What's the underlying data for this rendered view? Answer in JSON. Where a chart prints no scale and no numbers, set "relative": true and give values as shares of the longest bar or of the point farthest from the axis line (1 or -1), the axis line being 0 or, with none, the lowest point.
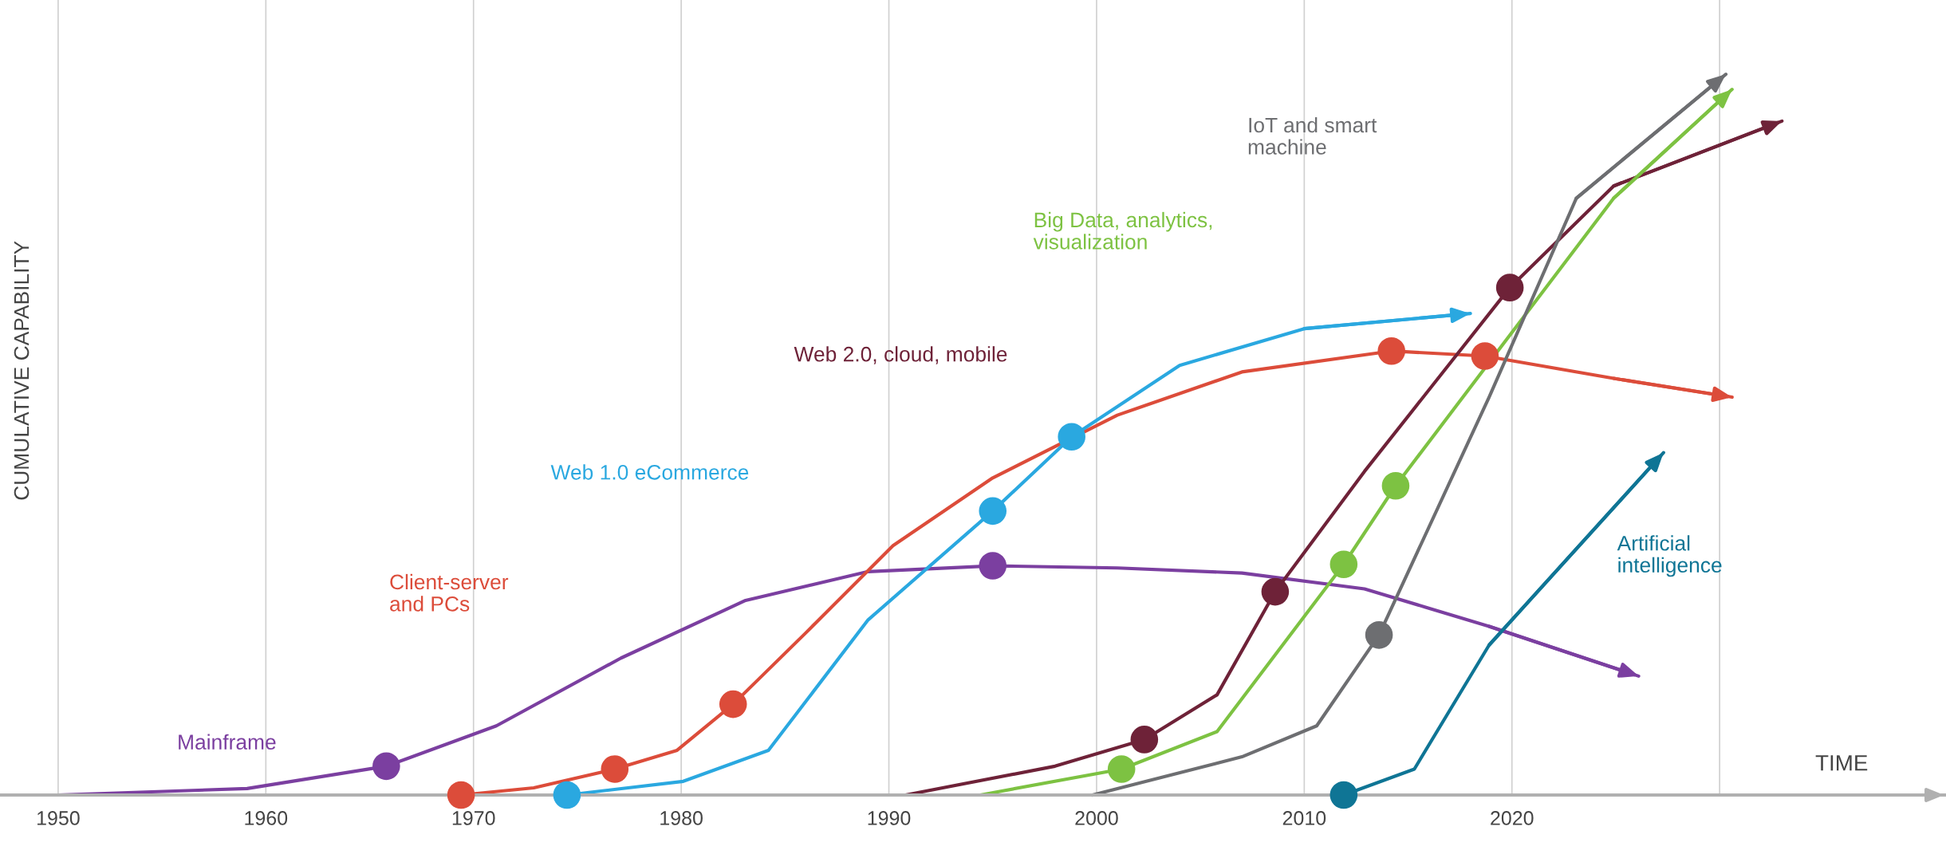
{
  "chart_data": {
    "type": "line",
    "relative": true,
    "xlabel": "TIME",
    "ylabel": "CUMULATIVE CAPABILITY",
    "xlim": [
      1947.2,
      2040.9
    ],
    "xticks": [
      1950,
      1960,
      1970,
      1980,
      1990,
      2000,
      2010,
      2020,
      {
        "value": 2030,
        "label": null
      }
    ],
    "grid": "x",
    "tick_labels": "x",
    "marker": "none",
    "line_style": "solid",
    "series": [
      {
        "name": "Mainframe",
        "color": "#7b3fa0",
        "x": [
          1950,
          1959.1,
          1965.8,
          1971.1,
          1977.1,
          1983.1,
          1989,
          1995,
          2001,
          2007,
          2012.9,
          2018.9,
          2026.1
        ],
        "values": [
          0,
          0.009,
          0.04,
          0.096,
          0.19,
          0.27,
          0.31,
          0.318,
          0.315,
          0.308,
          0.286,
          0.234,
          0.165
        ]
      },
      {
        "name": "Client-server\nand PCs",
        "color": "#dc4c3a",
        "x": [
          1969.4,
          1972.9,
          1976.8,
          1979.8,
          1982.5,
          1986,
          1990.2,
          1995,
          2001,
          2007,
          2014.2,
          2018.7,
          2024.9,
          2030.6
        ],
        "values": [
          0,
          0.01,
          0.036,
          0.062,
          0.126,
          0.225,
          0.346,
          0.44,
          0.527,
          0.587,
          0.616,
          0.609,
          0.578,
          0.552
        ]
      },
      {
        "name": "Web 1.0 eCommerce",
        "color": "#2aa8e0",
        "x": [
          1974.5,
          1980.1,
          1984.2,
          1989,
          1995,
          1998.8,
          2004,
          2010,
          2018
        ],
        "values": [
          0,
          0.019,
          0.062,
          0.243,
          0.394,
          0.497,
          0.596,
          0.647,
          0.668
        ]
      },
      {
        "name": "Web 2.0, cloud, mobile",
        "color": "#6e2238",
        "x": [
          1990.8,
          1998,
          2002.3,
          2005.8,
          2008.6,
          2012.9,
          2019.9,
          2024.9,
          2033
        ],
        "values": [
          0,
          0.04,
          0.077,
          0.139,
          0.282,
          0.449,
          0.704,
          0.845,
          0.935
        ]
      },
      {
        "name": "Big Data, analytics,\nvisualization",
        "color": "#7dc242",
        "x": [
          1994.4,
          2001.2,
          2005.8,
          2011.9,
          2014.4,
          2024.9,
          2030.6
        ],
        "values": [
          0,
          0.036,
          0.088,
          0.32,
          0.429,
          0.828,
          0.979
        ]
      },
      {
        "name": "IoT and smart\nmachine",
        "color": "#6d6e71",
        "x": [
          1999.8,
          2007,
          2010.6,
          2013.6,
          2018.9,
          2023.1,
          2030.3
        ],
        "values": [
          0,
          0.053,
          0.096,
          0.222,
          0.552,
          0.828,
          1
        ]
      },
      {
        "name": "Artificial\nintelligence",
        "color": "#0f7595",
        "x": [
          2011.9,
          2015.3,
          2018.9,
          2027.3
        ],
        "values": [
          0,
          0.036,
          0.208,
          0.475
        ]
      },
      {
        "type": "scatter",
        "marker": "circle",
        "color": "#7b3fa0",
        "x": [
          1965.8,
          1995
        ],
        "values": [
          0.04,
          0.318
        ]
      },
      {
        "type": "scatter",
        "marker": "circle",
        "color": "#dc4c3a",
        "x": [
          1969.4,
          1976.8,
          1982.5,
          2014.2,
          2018.7
        ],
        "values": [
          0,
          0.036,
          0.126,
          0.616,
          0.609
        ]
      },
      {
        "type": "scatter",
        "marker": "circle",
        "color": "#2aa8e0",
        "x": [
          1974.5,
          1995,
          1998.8
        ],
        "values": [
          0,
          0.394,
          0.497
        ]
      },
      {
        "type": "scatter",
        "marker": "circle",
        "color": "#6e2238",
        "x": [
          2002.3,
          2008.6,
          2019.9
        ],
        "values": [
          0.077,
          0.282,
          0.704
        ]
      },
      {
        "type": "scatter",
        "marker": "circle",
        "color": "#7dc242",
        "x": [
          2001.2,
          2011.9,
          2014.4
        ],
        "values": [
          0.036,
          0.32,
          0.429
        ]
      },
      {
        "type": "scatter",
        "marker": "circle",
        "color": "#6d6e71",
        "x": [
          2013.6
        ],
        "values": [
          0.222
        ]
      },
      {
        "type": "scatter",
        "marker": "circle",
        "color": "#0f7595",
        "x": [
          2011.9
        ],
        "values": [
          0
        ]
      }
    ]
  }
}
